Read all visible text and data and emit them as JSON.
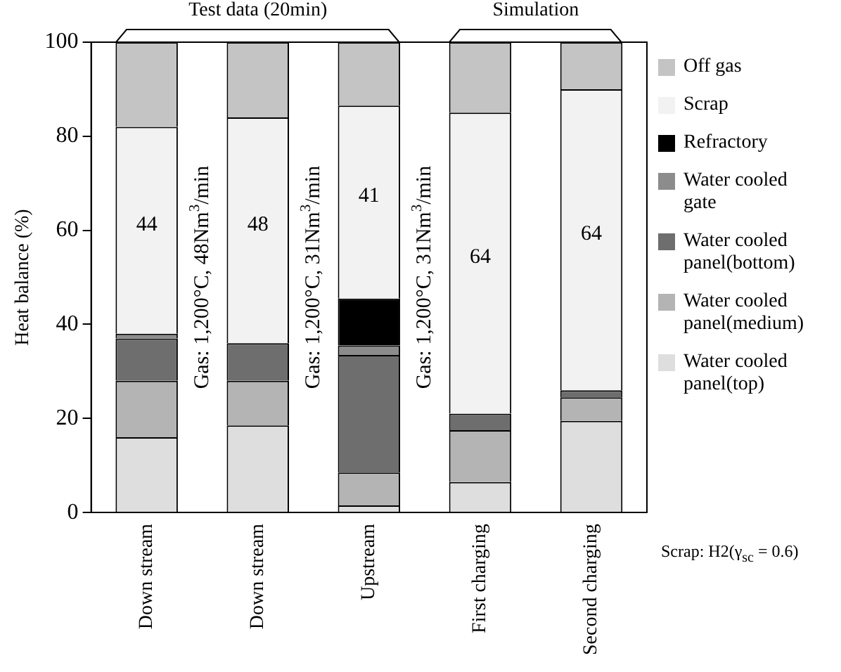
{
  "chart_data": {
    "type": "bar",
    "stacked": true,
    "ylabel": "Heat balance (%)",
    "categories": [
      "Down stream",
      "Down stream",
      "Upstream",
      "First charging",
      "Second charging"
    ],
    "series": [
      {
        "name": "Water cooled panel(top)",
        "color": "#dedede",
        "values": [
          16,
          18.5,
          1.5,
          6.5,
          19.5
        ]
      },
      {
        "name": "Water cooled panel(medium)",
        "color": "#b4b4b4",
        "values": [
          12,
          9.5,
          7,
          11,
          5
        ]
      },
      {
        "name": "Water cooled panel(bottom)",
        "color": "#6e6e6e",
        "values": [
          9,
          8,
          25,
          3.5,
          1.5
        ]
      },
      {
        "name": "Water cooled gate",
        "color": "#8c8c8c",
        "values": [
          1,
          0,
          2,
          0,
          0
        ]
      },
      {
        "name": "Refractory",
        "color": "#000000",
        "values": [
          0,
          0,
          10,
          0,
          0
        ]
      },
      {
        "name": "Scrap",
        "color": "#f2f2f2",
        "values": [
          44,
          48,
          41,
          64,
          64
        ],
        "value_labels": [
          "44",
          "48",
          "41",
          "64",
          "64"
        ]
      },
      {
        "name": "Off gas",
        "color": "#c4c4c4",
        "values": [
          18,
          16,
          13.5,
          15,
          10
        ]
      }
    ],
    "ylim": [
      0,
      100
    ],
    "yticks": [
      0,
      20,
      40,
      60,
      80,
      100
    ],
    "grid": false,
    "legend": "right",
    "annotations": [
      "Test data (20min)",
      "Simulation",
      "Gas: 1,200°C, 48Nm$^{3}$/min",
      "Gas: 1,200°C, 31Nm$^{3}$/min",
      "Gas: 1,200°C, 31Nm$^{3}$/min",
      "Scrap: H2(γ$_{sc}$ = 0.6)"
    ]
  }
}
